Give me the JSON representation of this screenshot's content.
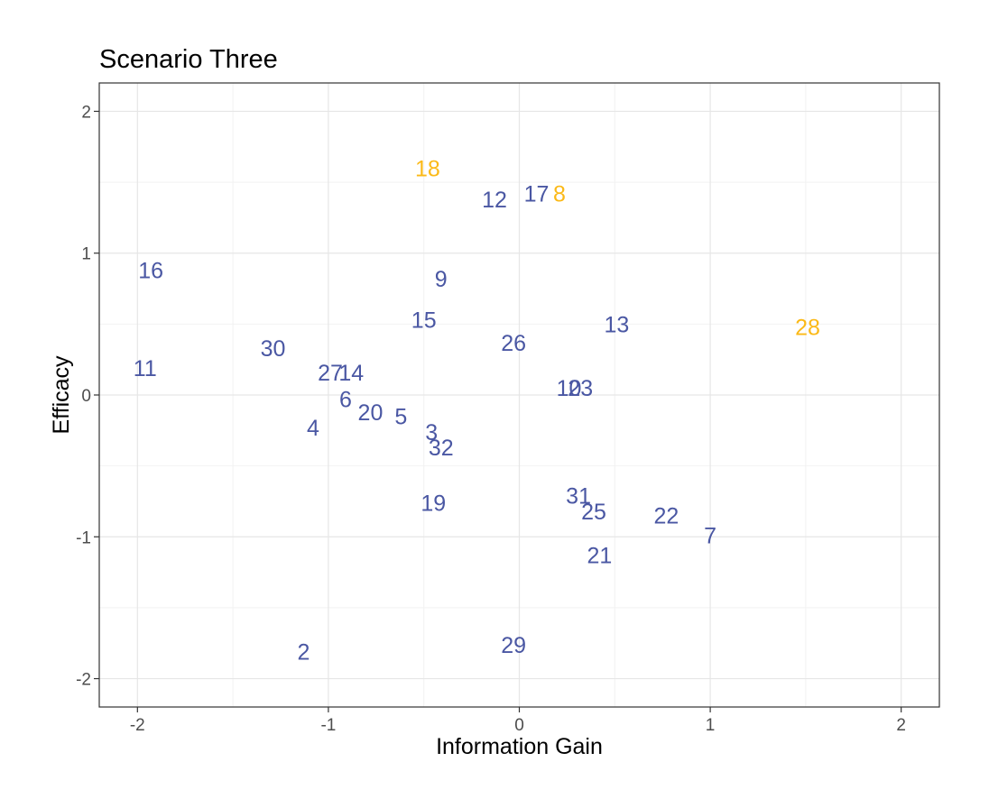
{
  "chart_data": {
    "type": "scatter",
    "title": "Scenario Three",
    "xlabel": "Information Gain",
    "ylabel": "Efficacy",
    "xlim": [
      -2.2,
      2.2
    ],
    "ylim": [
      -2.2,
      2.2
    ],
    "xticks": [
      -2,
      -1,
      0,
      1,
      2
    ],
    "yticks": [
      -2,
      -1,
      0,
      1,
      2
    ],
    "grid": true,
    "colors": {
      "default": "#4a57a3",
      "highlight": "#fbb917"
    },
    "points": [
      {
        "label": "18",
        "x": -0.48,
        "y": 1.6,
        "color": "highlight"
      },
      {
        "label": "12",
        "x": -0.13,
        "y": 1.38,
        "color": "default"
      },
      {
        "label": "17",
        "x": 0.09,
        "y": 1.42,
        "color": "default"
      },
      {
        "label": "8",
        "x": 0.21,
        "y": 1.42,
        "color": "highlight"
      },
      {
        "label": "16",
        "x": -1.93,
        "y": 0.88,
        "color": "default"
      },
      {
        "label": "9",
        "x": -0.41,
        "y": 0.82,
        "color": "default"
      },
      {
        "label": "15",
        "x": -0.5,
        "y": 0.53,
        "color": "default"
      },
      {
        "label": "13",
        "x": 0.51,
        "y": 0.5,
        "color": "default"
      },
      {
        "label": "28",
        "x": 1.51,
        "y": 0.48,
        "color": "highlight"
      },
      {
        "label": "30",
        "x": -1.29,
        "y": 0.33,
        "color": "default"
      },
      {
        "label": "26",
        "x": -0.03,
        "y": 0.37,
        "color": "default"
      },
      {
        "label": "11",
        "x": -1.96,
        "y": 0.19,
        "color": "default"
      },
      {
        "label": "27",
        "x": -0.99,
        "y": 0.16,
        "color": "default"
      },
      {
        "label": "14",
        "x": -0.88,
        "y": 0.16,
        "color": "default"
      },
      {
        "label": "10",
        "x": 0.26,
        "y": 0.05,
        "color": "default"
      },
      {
        "label": "23",
        "x": 0.32,
        "y": 0.05,
        "color": "default"
      },
      {
        "label": "6",
        "x": -0.91,
        "y": -0.03,
        "color": "default"
      },
      {
        "label": "20",
        "x": -0.78,
        "y": -0.12,
        "color": "default"
      },
      {
        "label": "5",
        "x": -0.62,
        "y": -0.15,
        "color": "default"
      },
      {
        "label": "4",
        "x": -1.08,
        "y": -0.23,
        "color": "default"
      },
      {
        "label": "3",
        "x": -0.46,
        "y": -0.26,
        "color": "default"
      },
      {
        "label": "32",
        "x": -0.41,
        "y": -0.37,
        "color": "default"
      },
      {
        "label": "19",
        "x": -0.45,
        "y": -0.76,
        "color": "default"
      },
      {
        "label": "31",
        "x": 0.31,
        "y": -0.71,
        "color": "default"
      },
      {
        "label": "25",
        "x": 0.39,
        "y": -0.82,
        "color": "default"
      },
      {
        "label": "22",
        "x": 0.77,
        "y": -0.85,
        "color": "default"
      },
      {
        "label": "7",
        "x": 1.0,
        "y": -0.99,
        "color": "default"
      },
      {
        "label": "21",
        "x": 0.42,
        "y": -1.13,
        "color": "default"
      },
      {
        "label": "29",
        "x": -0.03,
        "y": -1.76,
        "color": "default"
      },
      {
        "label": "2",
        "x": -1.13,
        "y": -1.81,
        "color": "default"
      }
    ]
  }
}
